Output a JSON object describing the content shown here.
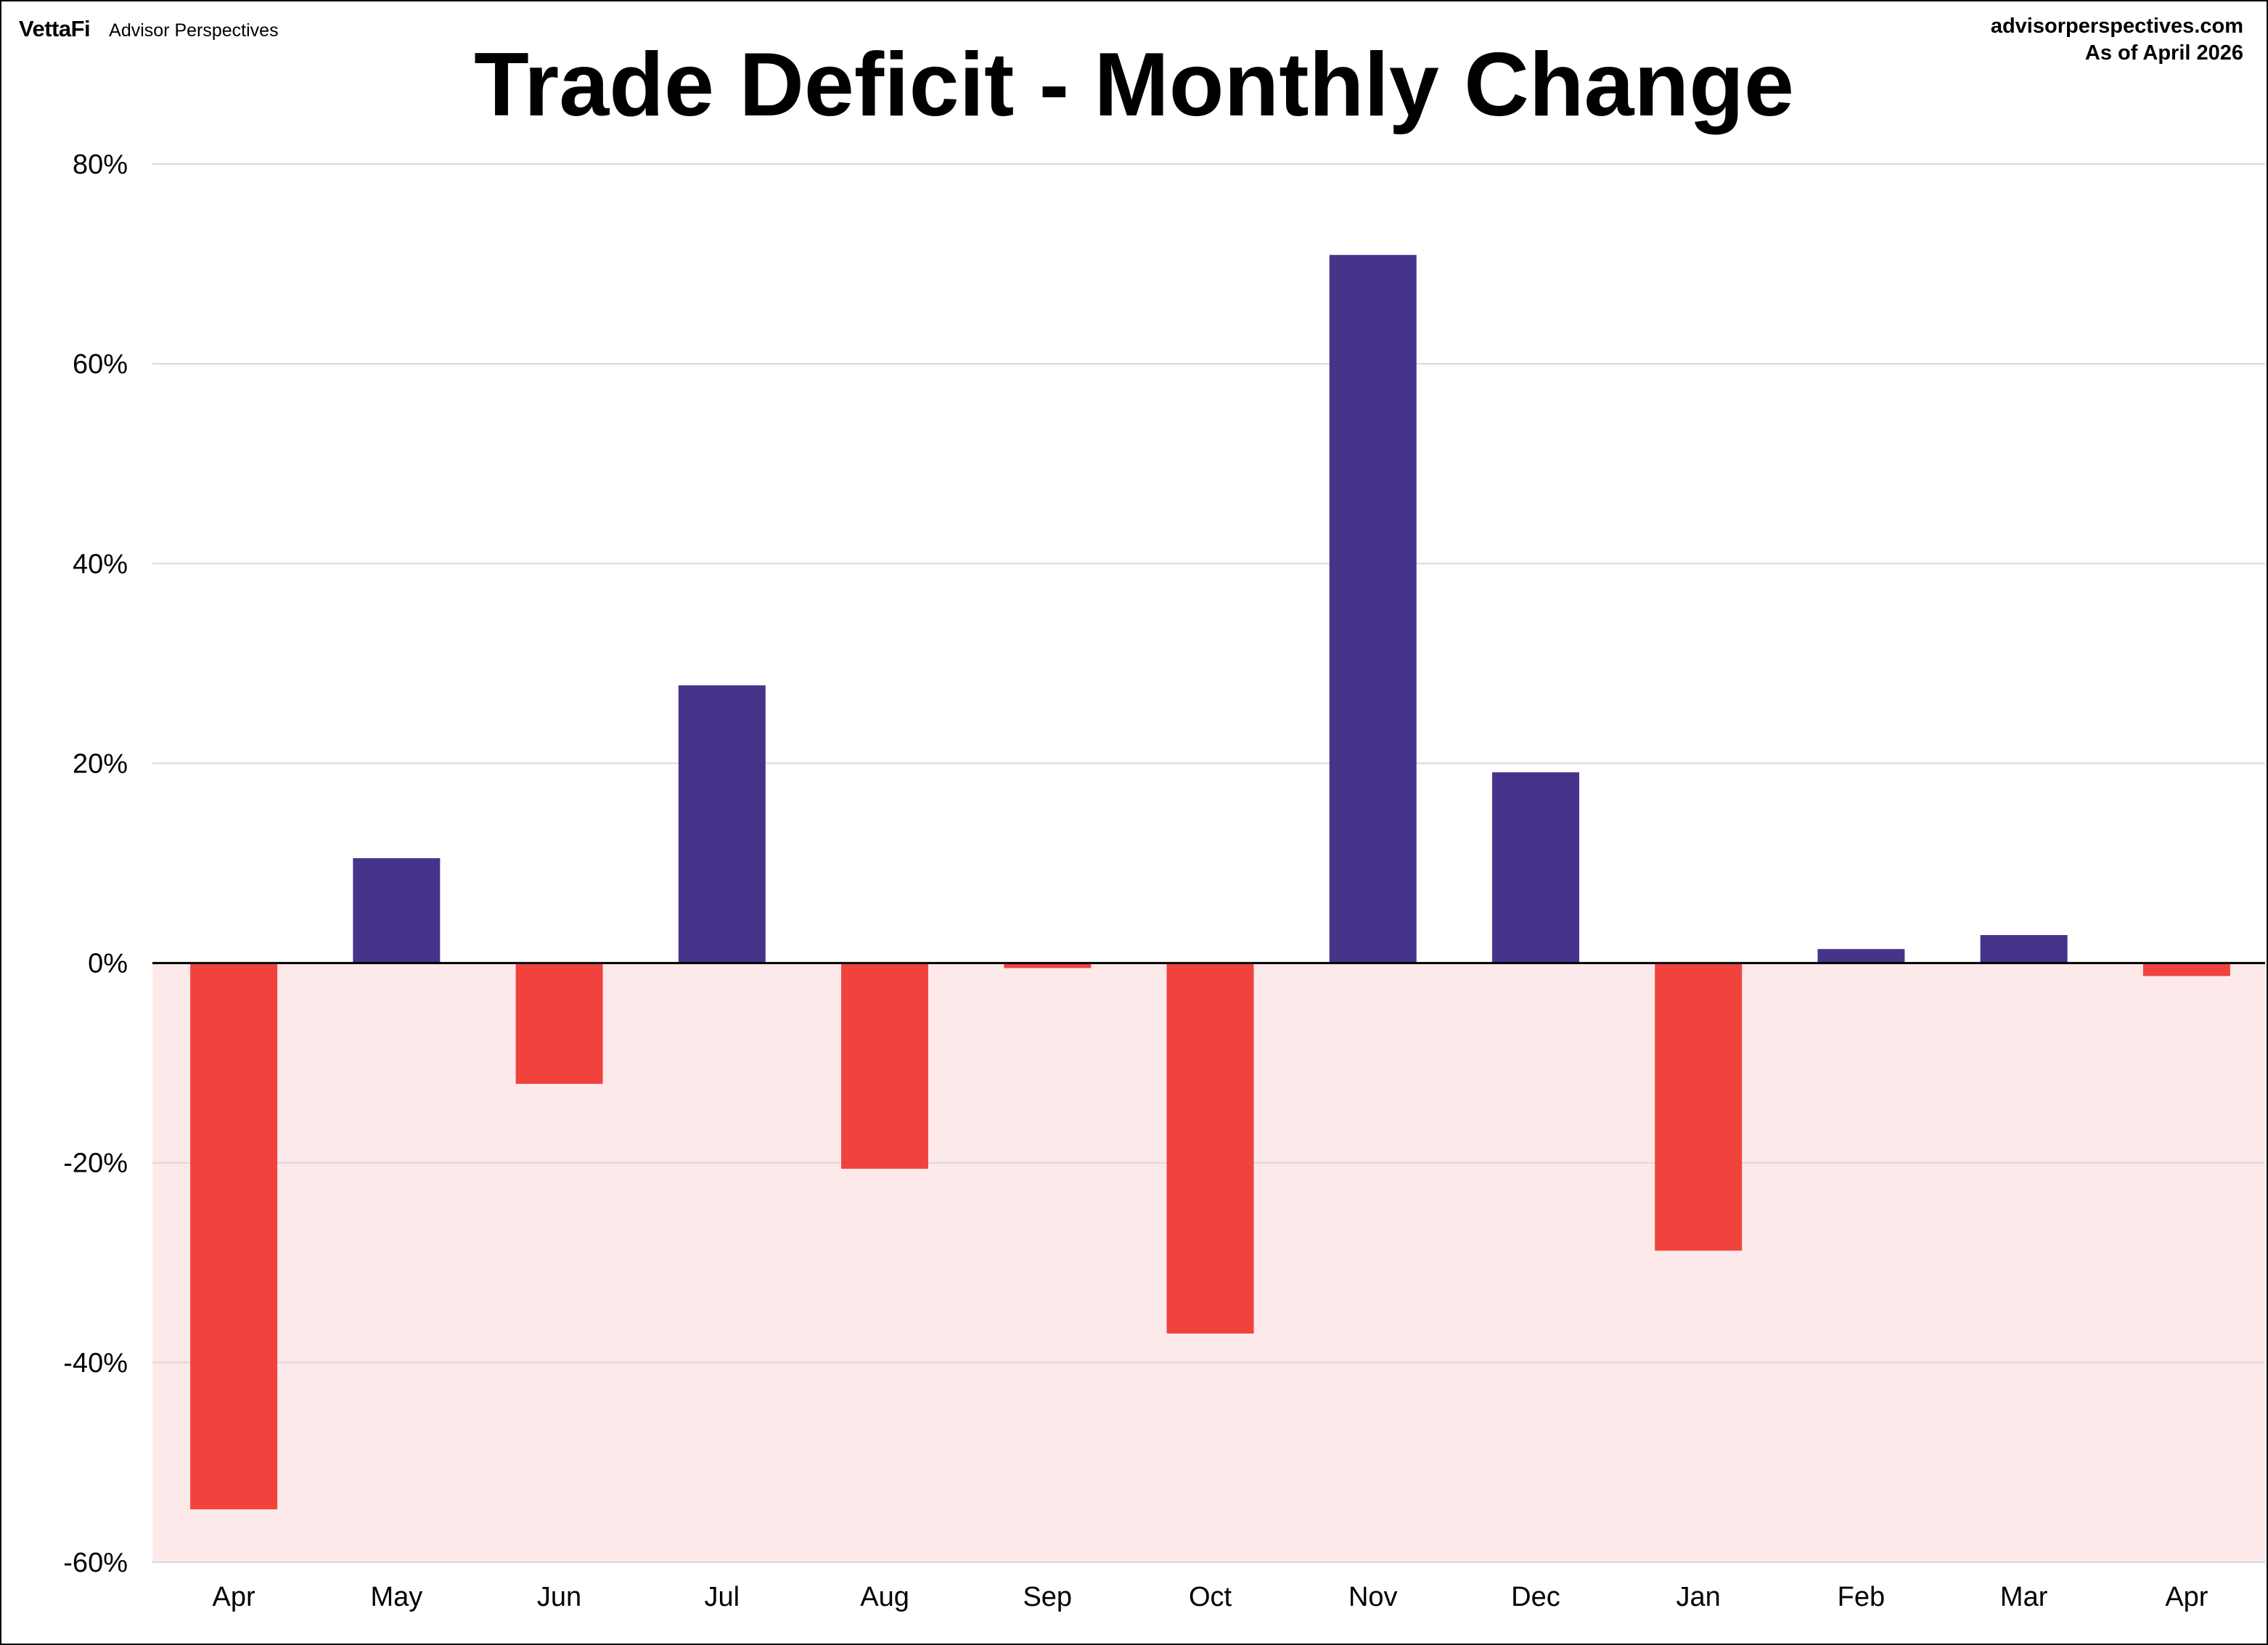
{
  "header": {
    "logo": "VettaFi",
    "brand": "Advisor Perspectives",
    "site": "advisorperspectives.com",
    "as_of": "As of April 2026"
  },
  "colors": {
    "positive": "#46338a",
    "negative": "#f0433e",
    "negative_region": "#fde9ea",
    "grid": "#d9d9d9",
    "zero_line": "#000000"
  },
  "chart_data": {
    "type": "bar",
    "title": "Trade Deficit - Monthly Change",
    "xlabel": "",
    "ylabel": "",
    "categories": [
      "Apr",
      "May",
      "Jun",
      "Jul",
      "Aug",
      "Sep",
      "Oct",
      "Nov",
      "Dec",
      "Jan",
      "Feb",
      "Mar",
      "Apr"
    ],
    "values": [
      -54.7,
      10.5,
      -12.1,
      27.8,
      -20.6,
      -0.5,
      -37.1,
      70.9,
      19.1,
      -28.8,
      1.4,
      2.8,
      -1.3
    ],
    "ylim": [
      -60,
      80
    ],
    "yticks": [
      80,
      60,
      40,
      20,
      0,
      -20,
      -40,
      -60
    ],
    "ytick_labels": [
      "80%",
      "60%",
      "40%",
      "20%",
      "0%",
      "-20%",
      "-40%",
      "-60%"
    ],
    "grid": true,
    "negative_region_shaded": true
  }
}
